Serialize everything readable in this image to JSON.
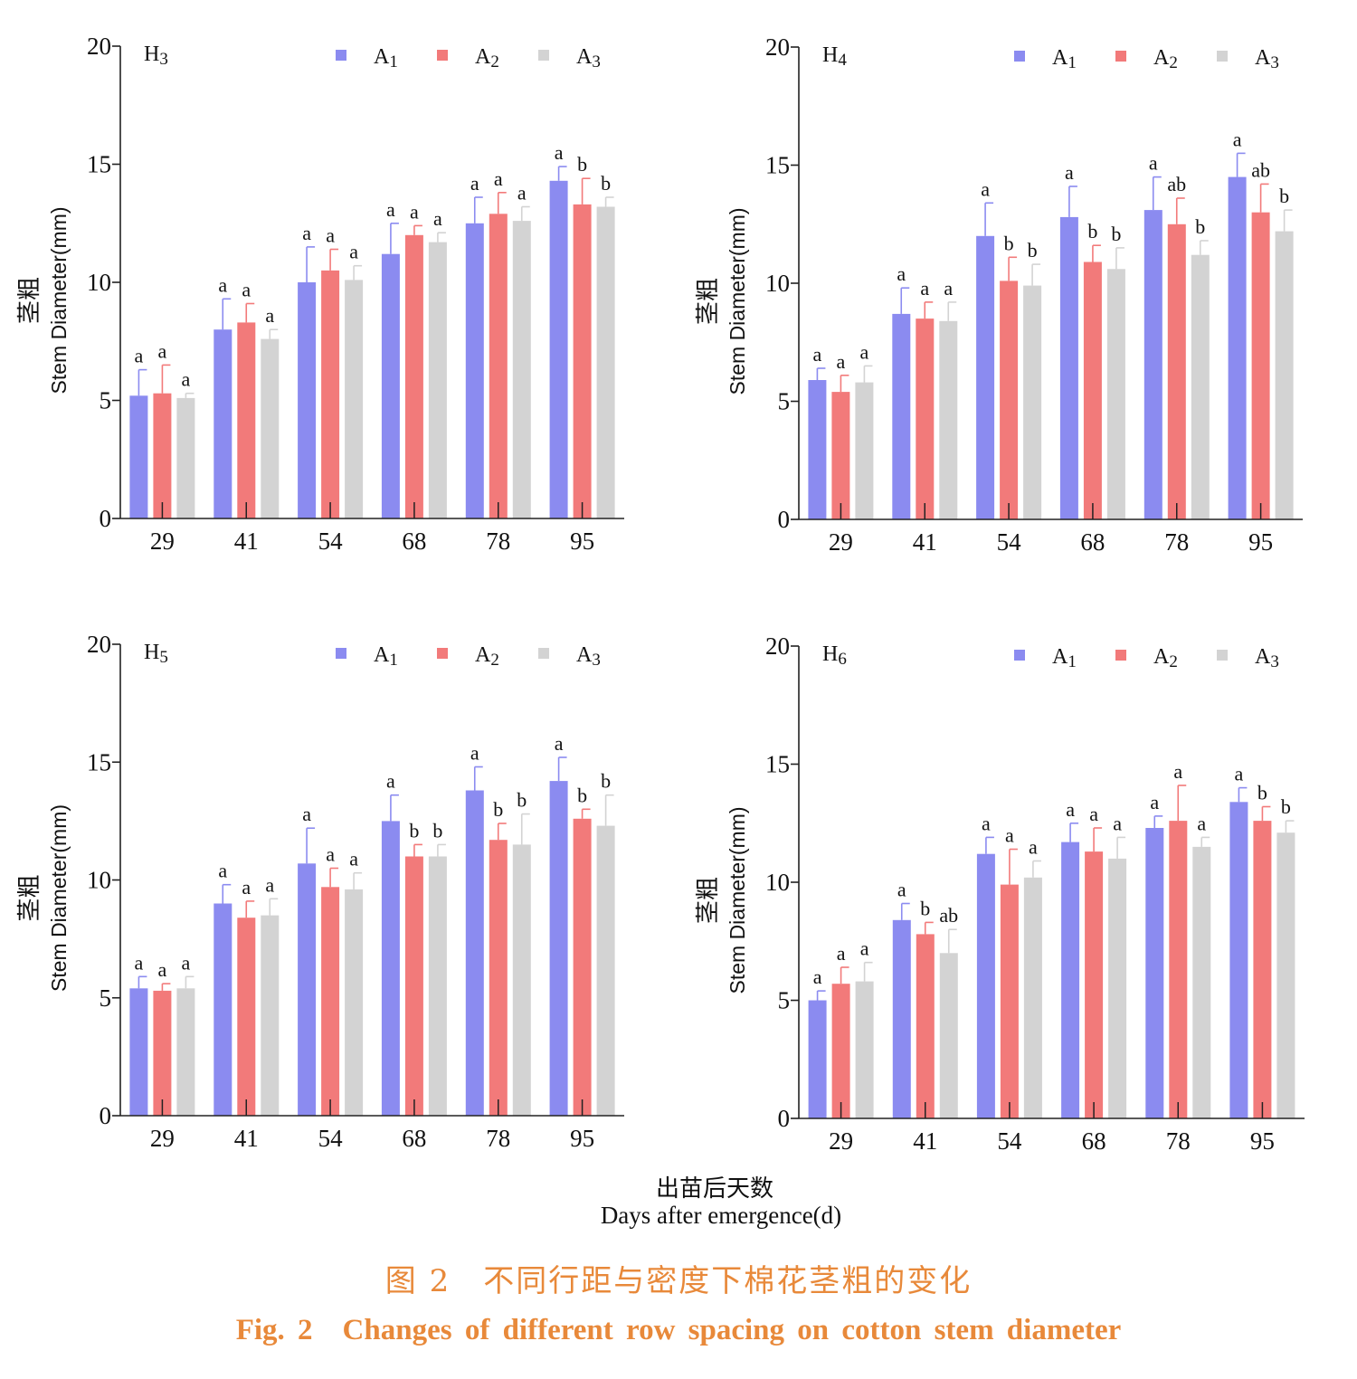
{
  "shared": {
    "x_title_cn": "出苗后天数",
    "x_title_en": "Days after emergence(d)",
    "y_title_cn": "茎粗",
    "y_title_en": "Stem Diameter(mm)"
  },
  "caption": {
    "cn": "图 2　不同行距与密度下棉花茎粗的变化",
    "en": "Fig. 2　Changes of different row spacing on cotton stem diameter"
  },
  "colors": {
    "A1": "#8b8bf0",
    "A2": "#f27a7a",
    "A3": "#d3d3d3"
  },
  "chart_data": [
    {
      "type": "bar",
      "title": "H3",
      "categories": [
        "29",
        "41",
        "54",
        "68",
        "78",
        "95"
      ],
      "ylim": [
        0,
        20
      ],
      "yticks": [
        0,
        5,
        10,
        15,
        20
      ],
      "legend_position": "top-right",
      "series": [
        {
          "name": "A1",
          "values": [
            5.2,
            8.0,
            10.0,
            11.2,
            12.5,
            14.3
          ],
          "errors": [
            1.1,
            1.3,
            1.5,
            1.3,
            1.1,
            0.6
          ],
          "letters": [
            "a",
            "a",
            "a",
            "a",
            "a",
            "a"
          ]
        },
        {
          "name": "A2",
          "values": [
            5.3,
            8.3,
            10.5,
            12.0,
            12.9,
            13.3
          ],
          "errors": [
            1.2,
            0.8,
            0.9,
            0.4,
            0.9,
            1.1
          ],
          "letters": [
            "a",
            "a",
            "a",
            "a",
            "a",
            "b"
          ]
        },
        {
          "name": "A3",
          "values": [
            5.1,
            7.6,
            10.1,
            11.7,
            12.6,
            13.2
          ],
          "errors": [
            0.2,
            0.4,
            0.6,
            0.4,
            0.6,
            0.4
          ],
          "letters": [
            "a",
            "a",
            "a",
            "a",
            "a",
            "b"
          ]
        }
      ]
    },
    {
      "type": "bar",
      "title": "H4",
      "categories": [
        "29",
        "41",
        "54",
        "68",
        "78",
        "95"
      ],
      "ylim": [
        0,
        20
      ],
      "yticks": [
        0,
        5,
        10,
        15,
        20
      ],
      "legend_position": "top-right",
      "series": [
        {
          "name": "A1",
          "values": [
            5.9,
            8.7,
            12.0,
            12.8,
            13.1,
            14.5
          ],
          "errors": [
            0.5,
            1.1,
            1.4,
            1.3,
            1.4,
            1.0
          ],
          "letters": [
            "a",
            "a",
            "a",
            "a",
            "a",
            "a"
          ]
        },
        {
          "name": "A2",
          "values": [
            5.4,
            8.5,
            10.1,
            10.9,
            12.5,
            13.0
          ],
          "errors": [
            0.7,
            0.7,
            1.0,
            0.7,
            1.1,
            1.2
          ],
          "letters": [
            "a",
            "a",
            "b",
            "b",
            "ab",
            "ab"
          ]
        },
        {
          "name": "A3",
          "values": [
            5.8,
            8.4,
            9.9,
            10.6,
            11.2,
            12.2
          ],
          "errors": [
            0.7,
            0.8,
            0.9,
            0.9,
            0.6,
            0.9
          ],
          "letters": [
            "a",
            "a",
            "b",
            "b",
            "b",
            "b"
          ]
        }
      ]
    },
    {
      "type": "bar",
      "title": "H5",
      "categories": [
        "29",
        "41",
        "54",
        "68",
        "78",
        "95"
      ],
      "ylim": [
        0,
        20
      ],
      "yticks": [
        0,
        5,
        10,
        15,
        20
      ],
      "legend_position": "top-right",
      "series": [
        {
          "name": "A1",
          "values": [
            5.4,
            9.0,
            10.7,
            12.5,
            13.8,
            14.2
          ],
          "errors": [
            0.5,
            0.8,
            1.5,
            1.1,
            1.0,
            1.0
          ],
          "letters": [
            "a",
            "a",
            "a",
            "a",
            "a",
            "a"
          ]
        },
        {
          "name": "A2",
          "values": [
            5.3,
            8.4,
            9.7,
            11.0,
            11.7,
            12.6
          ],
          "errors": [
            0.3,
            0.7,
            0.8,
            0.5,
            0.7,
            0.4
          ],
          "letters": [
            "a",
            "a",
            "a",
            "b",
            "b",
            "b"
          ]
        },
        {
          "name": "A3",
          "values": [
            5.4,
            8.5,
            9.6,
            11.0,
            11.5,
            12.3
          ],
          "errors": [
            0.5,
            0.7,
            0.7,
            0.5,
            1.3,
            1.3
          ],
          "letters": [
            "a",
            "a",
            "a",
            "b",
            "b",
            "b"
          ]
        }
      ]
    },
    {
      "type": "bar",
      "title": "H6",
      "categories": [
        "29",
        "41",
        "54",
        "68",
        "78",
        "95"
      ],
      "ylim": [
        0,
        20
      ],
      "yticks": [
        0,
        5,
        10,
        15,
        20
      ],
      "legend_position": "top-right",
      "series": [
        {
          "name": "A1",
          "values": [
            5.0,
            8.4,
            11.2,
            11.7,
            12.3,
            13.4
          ],
          "errors": [
            0.4,
            0.7,
            0.7,
            0.8,
            0.5,
            0.6
          ],
          "letters": [
            "a",
            "a",
            "a",
            "a",
            "a",
            "a"
          ]
        },
        {
          "name": "A2",
          "values": [
            5.7,
            7.8,
            9.9,
            11.3,
            12.6,
            12.6
          ],
          "errors": [
            0.7,
            0.5,
            1.5,
            1.0,
            1.5,
            0.6
          ],
          "letters": [
            "a",
            "b",
            "a",
            "a",
            "a",
            "b"
          ]
        },
        {
          "name": "A3",
          "values": [
            5.8,
            7.0,
            10.2,
            11.0,
            11.5,
            12.1
          ],
          "errors": [
            0.8,
            1.0,
            0.7,
            0.9,
            0.4,
            0.5
          ],
          "letters": [
            "a",
            "ab",
            "a",
            "a",
            "a",
            "b"
          ]
        }
      ]
    }
  ]
}
